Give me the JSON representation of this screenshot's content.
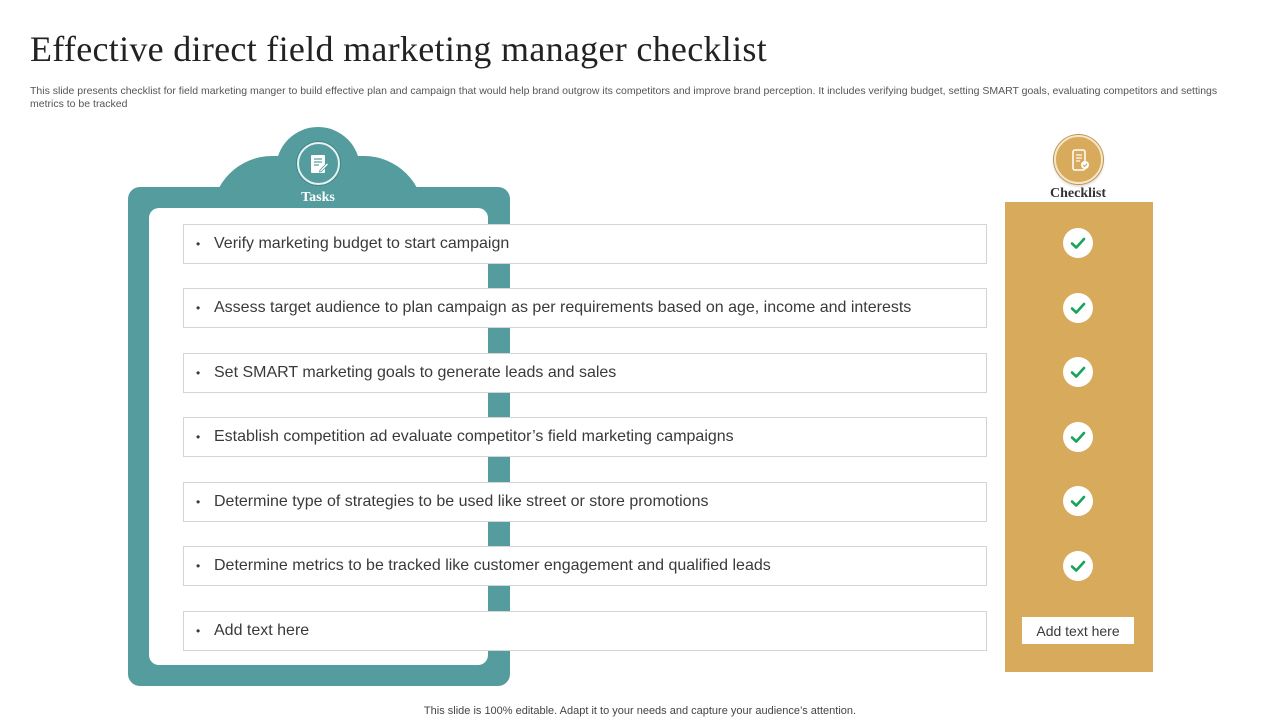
{
  "title": "Effective direct field marketing manager checklist",
  "subtitle": "This slide presents checklist for field marketing manger to build effective plan and campaign that would help brand  outgrow its competitors and improve brand perception. It includes verifying budget, setting SMART  goals, evaluating competitors and settings metrics to be tracked",
  "tasks": {
    "heading": "Tasks",
    "icon": "document-edit-icon",
    "items": [
      "Verify marketing budget to start campaign",
      "Assess target audience to plan campaign as per requirements based on age, income and interests",
      "Set SMART marketing goals to generate leads and sales",
      "Establish competition ad evaluate  competitor’s field marketing campaigns",
      "Determine type  of strategies to be used like street or  store promotions",
      "Determine metrics to be tracked like customer engagement and qualified leads",
      "Add text here"
    ]
  },
  "checklist": {
    "heading": "Checklist",
    "icon": "mobile-checklist-icon",
    "check_icon": "check-icon",
    "note": "Add text here"
  },
  "colors": {
    "teal": "#559c9e",
    "gold": "#d8aa5c",
    "check_green": "#1aa35a"
  },
  "footer": "This slide is 100% editable. Adapt it to your needs and capture your audience’s attention."
}
